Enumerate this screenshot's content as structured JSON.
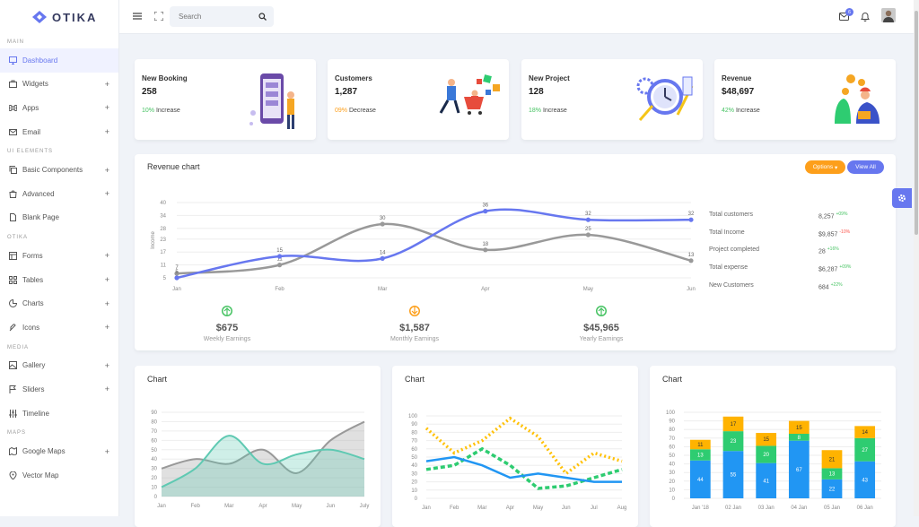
{
  "brand": "OTIKA",
  "search": {
    "placeholder": "Search"
  },
  "notifications": {
    "mail_count": "6"
  },
  "sidebar": {
    "sections": [
      "MAIN",
      "UI ELEMENTS",
      "OTIKA",
      "MEDIA",
      "MAPS"
    ],
    "items": [
      {
        "label": "Dashboard",
        "icon": "monitor-icon"
      },
      {
        "label": "Widgets",
        "icon": "briefcase-icon"
      },
      {
        "label": "Apps",
        "icon": "command-icon"
      },
      {
        "label": "Email",
        "icon": "mail-icon"
      },
      {
        "label": "Basic Components",
        "icon": "copy-icon"
      },
      {
        "label": "Advanced",
        "icon": "shopping-bag-icon"
      },
      {
        "label": "Blank Page",
        "icon": "file-icon"
      },
      {
        "label": "Forms",
        "icon": "layout-icon"
      },
      {
        "label": "Tables",
        "icon": "grid-icon"
      },
      {
        "label": "Charts",
        "icon": "pie-chart-icon"
      },
      {
        "label": "Icons",
        "icon": "feather-icon"
      },
      {
        "label": "Gallery",
        "icon": "image-icon"
      },
      {
        "label": "Sliders",
        "icon": "flag-icon"
      },
      {
        "label": "Timeline",
        "icon": "sliders-icon"
      },
      {
        "label": "Google Maps",
        "icon": "map-icon"
      },
      {
        "label": "Vector Map",
        "icon": "map-pin-icon"
      }
    ]
  },
  "stats": [
    {
      "title": "New Booking",
      "value": "258",
      "change": "10%",
      "change_label": "Increase",
      "color": "#47c363"
    },
    {
      "title": "Customers",
      "value": "1,287",
      "change": "09%",
      "change_label": "Decrease",
      "color": "#fd9f1b"
    },
    {
      "title": "New Project",
      "value": "128",
      "change": "18%",
      "change_label": "Increase",
      "color": "#47c363"
    },
    {
      "title": "Revenue",
      "value": "$48,697",
      "change": "42%",
      "change_label": "Increase",
      "color": "#47c363"
    }
  ],
  "revenue": {
    "title": "Revenue chart",
    "options_label": "Options",
    "view_all_label": "View All",
    "summary": [
      {
        "label": "Total customers",
        "value": "8,257",
        "delta": "+09%",
        "color": "#47c363"
      },
      {
        "label": "Total Income",
        "value": "$9,857",
        "delta": "-10%",
        "color": "#fc544b"
      },
      {
        "label": "Project completed",
        "value": "28",
        "delta": "+16%",
        "color": "#47c363"
      },
      {
        "label": "Total expense",
        "value": "$6,287",
        "delta": "+09%",
        "color": "#47c363"
      },
      {
        "label": "New Customers",
        "value": "684",
        "delta": "+22%",
        "color": "#47c363"
      }
    ],
    "earnings": [
      {
        "value": "$675",
        "label": "Weekly Earnings",
        "dir": "up",
        "color": "#47c363"
      },
      {
        "value": "$1,587",
        "label": "Monthly Earnings",
        "dir": "down",
        "color": "#fd9f1b"
      },
      {
        "value": "$45,965",
        "label": "Yearly Earnings",
        "dir": "up",
        "color": "#47c363"
      }
    ]
  },
  "chart_titles": [
    "Chart",
    "Chart",
    "Chart"
  ],
  "chart_data": [
    {
      "type": "line",
      "categories": [
        "Jan",
        "Feb",
        "Mar",
        "Apr",
        "May",
        "Jun"
      ],
      "ylabel": "Income",
      "ylim": [
        5,
        40
      ],
      "yticks": [
        5,
        11,
        17,
        23,
        28,
        34,
        40
      ],
      "series": [
        {
          "values": [
            5,
            15,
            14,
            36,
            32,
            32
          ],
          "color": "#6777ef"
        },
        {
          "values": [
            7,
            11,
            30,
            18,
            25,
            13
          ],
          "color": "#999999"
        }
      ]
    },
    {
      "type": "area",
      "categories": [
        "Jan",
        "Feb",
        "Mar",
        "Apr",
        "May",
        "Jun",
        "July"
      ],
      "ylim": [
        0,
        90
      ],
      "yticks": [
        0,
        10,
        20,
        30,
        40,
        50,
        60,
        70,
        80,
        90
      ],
      "series": [
        {
          "values": [
            30,
            40,
            35,
            50,
            25,
            60,
            80
          ],
          "color": "#999999"
        },
        {
          "values": [
            10,
            30,
            65,
            35,
            45,
            50,
            40
          ],
          "color": "#5fc9b2"
        }
      ]
    },
    {
      "type": "line",
      "categories": [
        "Jan",
        "Feb",
        "Mar",
        "Apr",
        "May",
        "Jun",
        "Jul",
        "Aug"
      ],
      "ylim": [
        0,
        100
      ],
      "yticks": [
        0,
        10,
        20,
        30,
        40,
        50,
        60,
        70,
        80,
        90,
        100
      ],
      "series": [
        {
          "values": [
            85,
            55,
            70,
            97,
            75,
            30,
            55,
            45
          ],
          "color": "#ffc107",
          "style": "dotted"
        },
        {
          "values": [
            35,
            40,
            60,
            40,
            12,
            15,
            25,
            35
          ],
          "color": "#2ecc71",
          "style": "dashed"
        },
        {
          "values": [
            45,
            50,
            40,
            25,
            30,
            25,
            20,
            20
          ],
          "color": "#2196f3",
          "style": "solid"
        }
      ]
    },
    {
      "type": "bar",
      "stacked": true,
      "categories": [
        "Jan '18",
        "02 Jan",
        "03 Jan",
        "04 Jan",
        "05 Jan",
        "06 Jan"
      ],
      "ylim": [
        0,
        100
      ],
      "yticks": [
        0,
        10,
        20,
        30,
        40,
        50,
        60,
        70,
        80,
        90,
        100
      ],
      "series": [
        {
          "values": [
            44,
            55,
            41,
            67,
            22,
            43
          ],
          "color": "#2196f3"
        },
        {
          "values": [
            13,
            23,
            20,
            8,
            13,
            27
          ],
          "color": "#2ecc71"
        },
        {
          "values": [
            11,
            17,
            15,
            15,
            21,
            14
          ],
          "color": "#ffb300"
        }
      ]
    }
  ]
}
